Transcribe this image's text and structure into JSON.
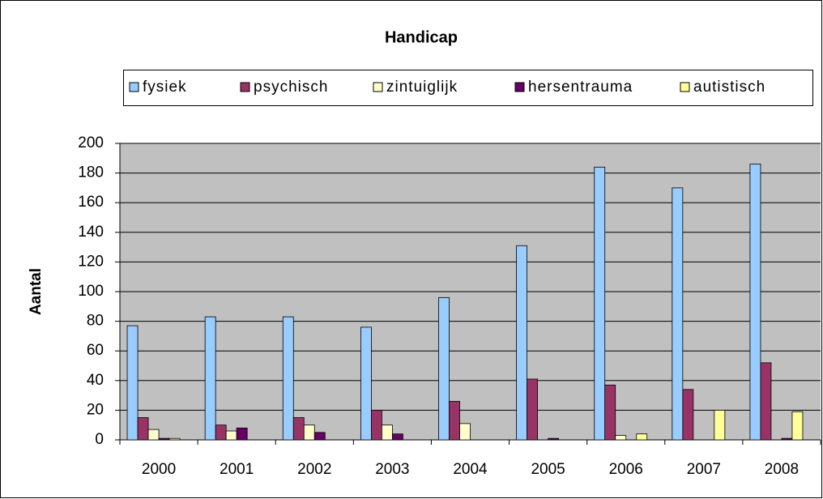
{
  "chart_data": {
    "type": "bar",
    "title": "Handicap",
    "y_label": "Aantal",
    "categories": [
      "2000",
      "2001",
      "2002",
      "2003",
      "2004",
      "2005",
      "2006",
      "2007",
      "2008"
    ],
    "series": [
      {
        "name": "fysiek",
        "color": "#99ccff",
        "values": [
          77,
          83,
          83,
          76,
          96,
          131,
          184,
          170,
          186
        ]
      },
      {
        "name": "psychisch",
        "color": "#993366",
        "values": [
          15,
          10,
          15,
          20,
          26,
          41,
          37,
          34,
          52
        ]
      },
      {
        "name": "zintuiglijk",
        "color": "#ffffcc",
        "values": [
          7,
          6,
          10,
          10,
          11,
          0,
          3,
          0,
          0
        ]
      },
      {
        "name": "hersentrauma",
        "color": "#660066",
        "values": [
          1,
          8,
          5,
          4,
          0,
          1,
          0,
          0,
          1
        ]
      },
      {
        "name": "autistisch",
        "color": "#ffff99",
        "values": [
          1,
          0,
          0,
          0,
          0,
          0,
          4,
          20,
          19
        ]
      }
    ],
    "ylim": [
      0,
      200
    ],
    "yticks": [
      0,
      20,
      40,
      60,
      80,
      100,
      120,
      140,
      160,
      180,
      200
    ],
    "grid": true,
    "legend": "top"
  }
}
